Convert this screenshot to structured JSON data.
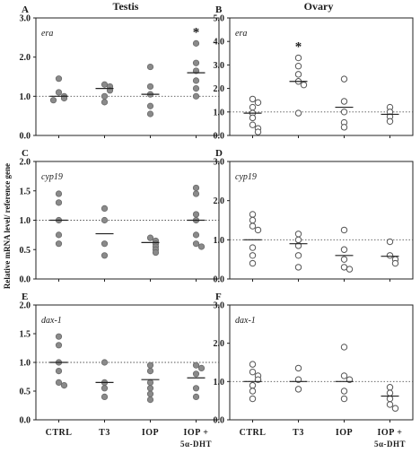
{
  "figure": {
    "col_titles": [
      "Testis",
      "Ovary"
    ],
    "ylabel": "Relative mRNA level/ reference gene",
    "categories": [
      "CTRL",
      "T3",
      "IOP",
      "IOP +"
    ],
    "category_sub": "5α-DHT",
    "colors": {
      "filled": "#8a8a8a",
      "open_stroke": "#555555",
      "reference": "#555555"
    }
  },
  "chart_data": [
    {
      "panel": "A",
      "tissue": "Testis",
      "gene": "era",
      "type": "scatter",
      "marker": "filled",
      "ylim": [
        0,
        3.0
      ],
      "yticks": [
        "0.0",
        "1.0",
        "2.0",
        "3.0"
      ],
      "reference_line": 1.0,
      "categories": [
        "CTRL",
        "T3",
        "IOP",
        "IOP + 5α-DHT"
      ],
      "points": [
        [
          1.45,
          1.1,
          1.0,
          0.95,
          0.9
        ],
        [
          1.3,
          1.25,
          1.15,
          1.0,
          0.85
        ],
        [
          1.75,
          1.25,
          1.05,
          0.75,
          0.55
        ],
        [
          2.35,
          1.85,
          1.65,
          1.4,
          1.2,
          1.0
        ]
      ],
      "means": [
        1.0,
        1.2,
        1.05,
        1.6
      ],
      "significance": [
        "",
        "",
        "",
        "*"
      ]
    },
    {
      "panel": "B",
      "tissue": "Ovary",
      "gene": "era",
      "type": "scatter",
      "marker": "open",
      "ylim": [
        0,
        5.0
      ],
      "yticks": [
        "0.0",
        "1.0",
        "2.0",
        "3.0",
        "4.0",
        "5.0"
      ],
      "reference_line": 1.0,
      "categories": [
        "CTRL",
        "T3",
        "IOP",
        "IOP + 5α-DHT"
      ],
      "points": [
        [
          1.55,
          1.4,
          1.2,
          0.95,
          0.75,
          0.45,
          0.3,
          0.15
        ],
        [
          3.3,
          2.95,
          2.6,
          2.3,
          2.15,
          0.95
        ],
        [
          2.4,
          1.45,
          1.0,
          0.55,
          0.35
        ],
        [
          1.2,
          1.0,
          0.8,
          0.6
        ]
      ],
      "means": [
        0.95,
        2.3,
        1.2,
        0.9
      ],
      "significance": [
        "",
        "*",
        "",
        ""
      ]
    },
    {
      "panel": "C",
      "tissue": "Testis",
      "gene": "cyp19",
      "type": "scatter",
      "marker": "filled",
      "ylim": [
        0,
        2.0
      ],
      "yticks": [
        "0.0",
        "0.5",
        "1.0",
        "1.5",
        "2.0"
      ],
      "reference_line": 1.0,
      "categories": [
        "CTRL",
        "T3",
        "IOP",
        "IOP + 5α-DHT"
      ],
      "points": [
        [
          1.45,
          1.3,
          1.0,
          0.75,
          0.6
        ],
        [
          1.2,
          1.0,
          0.6,
          0.4
        ],
        [
          0.7,
          0.65,
          0.6,
          0.55,
          0.5,
          0.45
        ],
        [
          1.55,
          1.45,
          1.1,
          1.0,
          0.75,
          0.6,
          0.55
        ]
      ],
      "means": [
        1.0,
        0.77,
        0.62,
        1.0
      ],
      "significance": [
        "",
        "",
        "",
        ""
      ]
    },
    {
      "panel": "D",
      "tissue": "Ovary",
      "gene": "cyp19",
      "type": "scatter",
      "marker": "open",
      "ylim": [
        0,
        3.0
      ],
      "yticks": [
        "0.0",
        "1.0",
        "2.0",
        "3.0"
      ],
      "reference_line": 1.0,
      "categories": [
        "CTRL",
        "T3",
        "IOP",
        "IOP + 5α-DHT"
      ],
      "points": [
        [
          1.65,
          1.5,
          1.35,
          1.25,
          0.8,
          0.6,
          0.4
        ],
        [
          1.15,
          1.0,
          0.85,
          0.6,
          0.3
        ],
        [
          1.25,
          0.75,
          0.5,
          0.3,
          0.25
        ],
        [
          0.95,
          0.6,
          0.5,
          0.4
        ]
      ],
      "means": [
        1.0,
        0.9,
        0.6,
        0.58
      ],
      "significance": [
        "",
        "",
        "",
        ""
      ]
    },
    {
      "panel": "E",
      "tissue": "Testis",
      "gene": "dax-1",
      "type": "scatter",
      "marker": "filled",
      "ylim": [
        0,
        2.0
      ],
      "yticks": [
        "0.0",
        "0.5",
        "1.0",
        "1.5",
        "2.0"
      ],
      "reference_line": 1.0,
      "categories": [
        "CTRL",
        "T3",
        "IOP",
        "IOP + 5α-DHT"
      ],
      "points": [
        [
          1.45,
          1.3,
          1.0,
          0.85,
          0.65,
          0.6
        ],
        [
          1.0,
          0.65,
          0.55,
          0.4
        ],
        [
          0.95,
          0.85,
          0.65,
          0.55,
          0.45,
          0.35
        ],
        [
          0.95,
          0.9,
          0.8,
          0.55,
          0.4
        ]
      ],
      "means": [
        1.0,
        0.65,
        0.7,
        0.73
      ],
      "significance": [
        "",
        "",
        "",
        ""
      ]
    },
    {
      "panel": "F",
      "tissue": "Ovary",
      "gene": "dax-1",
      "type": "scatter",
      "marker": "open",
      "ylim": [
        0,
        3.0
      ],
      "yticks": [
        "0.0",
        "1.0",
        "2.0",
        "3.0"
      ],
      "reference_line": 1.0,
      "categories": [
        "CTRL",
        "T3",
        "IOP",
        "IOP + 5α-DHT"
      ],
      "points": [
        [
          1.45,
          1.25,
          1.15,
          1.05,
          0.9,
          0.75,
          0.55
        ],
        [
          1.35,
          1.05,
          0.8
        ],
        [
          1.9,
          1.15,
          1.05,
          0.75,
          0.55
        ],
        [
          0.85,
          0.7,
          0.55,
          0.4,
          0.3
        ]
      ],
      "means": [
        1.0,
        1.0,
        1.0,
        0.62
      ],
      "significance": [
        "",
        "",
        "",
        ""
      ]
    }
  ]
}
